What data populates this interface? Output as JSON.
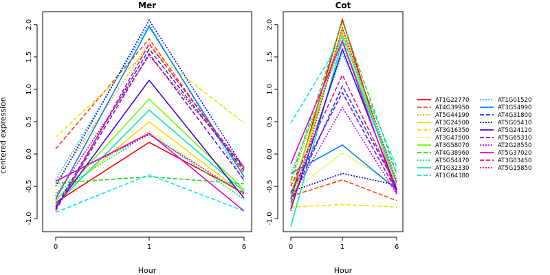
{
  "chart_data": {
    "type": "line",
    "ylabel": "centered expression",
    "xlabel": "Hour",
    "x": [
      "0",
      "1",
      "6"
    ],
    "ylim": [
      -1.2,
      2.2
    ],
    "yticks": [
      "-1.0",
      "-0.5",
      "0.0",
      "0.5",
      "1.0",
      "1.5",
      "2.0"
    ],
    "legend_placement": "right",
    "series": [
      {
        "name": "AT1G22770",
        "color": "#ff0000",
        "dash": "solid"
      },
      {
        "name": "AT4G39950",
        "color": "#ff4000",
        "dash": "dashed"
      },
      {
        "name": "AT5G44190",
        "color": "#ff9f00",
        "dash": "dotted"
      },
      {
        "name": "AT3G24500",
        "color": "#ffd700",
        "dash": "solid"
      },
      {
        "name": "AT3G16350",
        "color": "#e6e600",
        "dash": "dashed"
      },
      {
        "name": "AT3G47500",
        "color": "#bfff00",
        "dash": "dotted"
      },
      {
        "name": "AT3G58070",
        "color": "#66ff00",
        "dash": "solid"
      },
      {
        "name": "AT4G38960",
        "color": "#1cd61c",
        "dash": "dashed"
      },
      {
        "name": "AT5G54470",
        "color": "#00e676",
        "dash": "dotted"
      },
      {
        "name": "AT1G32330",
        "color": "#00e6b0",
        "dash": "solid"
      },
      {
        "name": "AT1G64380",
        "color": "#00e6e6",
        "dash": "dashed"
      },
      {
        "name": "AT1G01520",
        "color": "#00c8ff",
        "dash": "dotted"
      },
      {
        "name": "AT3G54990",
        "color": "#0080ff",
        "dash": "solid"
      },
      {
        "name": "AT4G31800",
        "color": "#0040ff",
        "dash": "dashed"
      },
      {
        "name": "AT5G05410",
        "color": "#0000e6",
        "dash": "dotted"
      },
      {
        "name": "AT5G24120",
        "color": "#4000e6",
        "dash": "solid"
      },
      {
        "name": "AT5G65310",
        "color": "#8000e6",
        "dash": "dashed"
      },
      {
        "name": "AT2G28550",
        "color": "#bf00e6",
        "dash": "dotted"
      },
      {
        "name": "AT5G37020",
        "color": "#e600cc",
        "dash": "solid"
      },
      {
        "name": "AT3G03450",
        "color": "#ff0080",
        "dash": "dashed"
      },
      {
        "name": "AT5G15850",
        "color": "#ff0040",
        "dash": "dotted"
      }
    ],
    "panels": [
      {
        "title": "Mer",
        "values": [
          [
            -0.75,
            0.18,
            -0.6
          ],
          [
            0.08,
            1.78,
            -0.3
          ],
          [
            -0.45,
            1.72,
            -0.28
          ],
          [
            -0.7,
            0.5,
            -0.62
          ],
          [
            0.26,
            1.62,
            0.48
          ],
          [
            -0.55,
            0.35,
            -0.65
          ],
          [
            -0.72,
            0.85,
            -0.55
          ],
          [
            -0.45,
            -0.35,
            -0.46
          ],
          [
            -0.6,
            0.32,
            -0.7
          ],
          [
            -0.78,
            0.68,
            -0.58
          ],
          [
            -0.9,
            -0.32,
            -0.88
          ],
          [
            -0.4,
            2.0,
            -0.42
          ],
          [
            -0.7,
            1.97,
            -0.35
          ],
          [
            -0.82,
            1.62,
            -0.25
          ],
          [
            -0.5,
            2.07,
            -0.22
          ],
          [
            -0.82,
            1.14,
            -0.68
          ],
          [
            -0.85,
            1.55,
            -0.4
          ],
          [
            -0.42,
            0.3,
            -0.62
          ],
          [
            -0.42,
            0.32,
            -0.88
          ],
          [
            -0.88,
            1.7,
            -0.22
          ],
          [
            -0.65,
            1.52,
            -0.2
          ]
        ]
      },
      {
        "title": "Cot",
        "values": [
          [
            -0.7,
            2.08,
            -0.6
          ],
          [
            -0.65,
            -0.4,
            -0.72
          ],
          [
            -0.45,
            1.9,
            -0.5
          ],
          [
            -0.8,
            1.95,
            -0.55
          ],
          [
            -0.82,
            -0.78,
            -0.82
          ],
          [
            -0.6,
            0.02,
            -0.48
          ],
          [
            -0.62,
            1.85,
            -0.45
          ],
          [
            -0.4,
            2.05,
            -0.3
          ],
          [
            -0.3,
            1.7,
            -0.4
          ],
          [
            -1.12,
            1.75,
            -0.45
          ],
          [
            0.48,
            1.8,
            -0.2
          ],
          [
            -0.7,
            1.55,
            -0.3
          ],
          [
            -0.3,
            0.14,
            -0.55
          ],
          [
            -0.75,
            1.05,
            -0.5
          ],
          [
            -0.58,
            -0.3,
            -0.48
          ],
          [
            -0.85,
            1.62,
            -0.55
          ],
          [
            -0.6,
            0.95,
            -0.58
          ],
          [
            -0.7,
            0.72,
            -0.62
          ],
          [
            -0.15,
            1.75,
            -0.62
          ],
          [
            -0.5,
            1.22,
            -0.52
          ],
          [
            -0.88,
            1.95,
            -0.42
          ]
        ]
      }
    ]
  }
}
